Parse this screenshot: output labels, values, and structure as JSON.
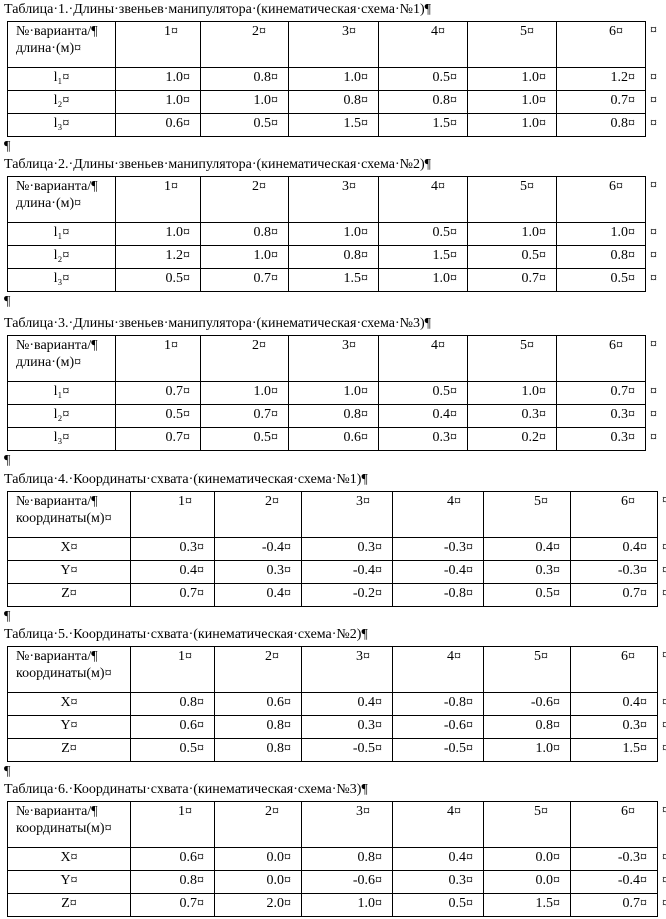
{
  "tables": [
    {
      "title": "Таблица·1.·Длины·звеньев·манипулятора·(кинематическая·схема·№1)¶",
      "header": {
        "label": [
          "№·варианта/¶",
          "длина·(м)¤"
        ],
        "columns": [
          "1¤",
          "2¤",
          "3¤",
          "4¤",
          "5¤",
          "6¤"
        ],
        "end": "¤"
      },
      "rows": [
        {
          "label": "l₁¤",
          "cells": [
            "1.0¤",
            "0.8¤",
            "1.0¤",
            "0.5¤",
            "1.0¤",
            "1.2¤"
          ],
          "end": "¤"
        },
        {
          "label": "l₂¤",
          "cells": [
            "1.0¤",
            "1.0¤",
            "0.8¤",
            "0.8¤",
            "1.0¤",
            "0.7¤"
          ],
          "end": "¤"
        },
        {
          "label": "l₃¤",
          "cells": [
            "0.6¤",
            "0.5¤",
            "1.5¤",
            "1.5¤",
            "1.0¤",
            "0.8¤"
          ],
          "end": "¤"
        }
      ],
      "after": "¶"
    },
    {
      "title": "Таблица·2.·Длины·звеньев·манипулятора·(кинематическая·схема·№2)¶",
      "header": {
        "label": [
          "№·варианта/¶",
          "длина·(м)¤"
        ],
        "columns": [
          "1¤",
          "2¤",
          "3¤",
          "4¤",
          "5¤",
          "6¤"
        ],
        "end": "¤"
      },
      "rows": [
        {
          "label": "l₁¤",
          "cells": [
            "1.0¤",
            "0.8¤",
            "1.0¤",
            "0.5¤",
            "1.0¤",
            "1.0¤"
          ],
          "end": "¤"
        },
        {
          "label": "l₂¤",
          "cells": [
            "1.2¤",
            "1.0¤",
            "0.8¤",
            "1.5¤",
            "0.5¤",
            "0.8¤"
          ],
          "end": "¤"
        },
        {
          "label": "l₃¤",
          "cells": [
            "0.5¤",
            "0.7¤",
            "1.5¤",
            "1.0¤",
            "0.7¤",
            "0.5¤"
          ],
          "end": "¤"
        }
      ],
      "after": "¶"
    },
    {
      "title": "Таблица·3.·Длины·звеньев·манипулятора·(кинематическая·схема·№3)¶",
      "header": {
        "label": [
          "№·варианта/¶",
          "длина·(м)¤"
        ],
        "columns": [
          "1¤",
          "2¤",
          "3¤",
          "4¤",
          "5¤",
          "6¤"
        ],
        "end": "¤"
      },
      "rows": [
        {
          "label": "l₁¤",
          "cells": [
            "0.7¤",
            "1.0¤",
            "1.0¤",
            "0.5¤",
            "1.0¤",
            "0.7¤"
          ],
          "end": "¤"
        },
        {
          "label": "l₂¤",
          "cells": [
            "0.5¤",
            "0.7¤",
            "0.8¤",
            "0.4¤",
            "0.3¤",
            "0.3¤"
          ],
          "end": "¤"
        },
        {
          "label": "l₃¤",
          "cells": [
            "0.7¤",
            "0.5¤",
            "0.6¤",
            "0.3¤",
            "0.2¤",
            "0.3¤"
          ],
          "end": "¤"
        }
      ],
      "after": "¶"
    },
    {
      "title": "Таблица·4.·Координаты·схвата·(кинематическая·схема·№1)¶",
      "header": {
        "label": [
          "№·варианта/¶",
          "координаты(м)¤"
        ],
        "columns": [
          "1¤",
          "2¤",
          "3¤",
          "4¤",
          "5¤",
          "6¤"
        ],
        "end": "¤"
      },
      "rows": [
        {
          "label": "X¤",
          "cells": [
            "0.3¤",
            "-0.4¤",
            "0.3¤",
            "-0.3¤",
            "0.4¤",
            "0.4¤"
          ],
          "end": "¤"
        },
        {
          "label": "Y¤",
          "cells": [
            "0.4¤",
            "0.3¤",
            "-0.4¤",
            "-0.4¤",
            "0.3¤",
            "-0.3¤"
          ],
          "end": "¤"
        },
        {
          "label": "Z¤",
          "cells": [
            "0.7¤",
            "0.4¤",
            "-0.2¤",
            "-0.8¤",
            "0.5¤",
            "0.7¤"
          ],
          "end": "¤"
        }
      ],
      "after": "¶"
    },
    {
      "title": "Таблица·5.·Координаты·схвата·(кинематическая·схема·№2)¶",
      "header": {
        "label": [
          "№·варианта/¶",
          "координаты(м)¤"
        ],
        "columns": [
          "1¤",
          "2¤",
          "3¤",
          "4¤",
          "5¤",
          "6¤"
        ],
        "end": "¤"
      },
      "rows": [
        {
          "label": "X¤",
          "cells": [
            "0.8¤",
            "0.6¤",
            "0.4¤",
            "-0.8¤",
            "-0.6¤",
            "0.4¤"
          ],
          "end": "¤"
        },
        {
          "label": "Y¤",
          "cells": [
            "0.6¤",
            "0.8¤",
            "0.3¤",
            "-0.6¤",
            "0.8¤",
            "0.3¤"
          ],
          "end": "¤"
        },
        {
          "label": "Z¤",
          "cells": [
            "0.5¤",
            "0.8¤",
            "-0.5¤",
            "-0.5¤",
            "1.0¤",
            "1.5¤"
          ],
          "end": "¤"
        }
      ],
      "after": "¶"
    },
    {
      "title": "Таблица·6.·Координаты·схвата·(кинематическая·схема·№3)¶",
      "header": {
        "label": [
          "№·варианта/¶",
          "координаты(м)¤"
        ],
        "columns": [
          "1¤",
          "2¤",
          "3¤",
          "4¤",
          "5¤",
          "6¤"
        ],
        "end": "¤"
      },
      "rows": [
        {
          "label": "X¤",
          "cells": [
            "0.6¤",
            "0.0¤",
            "0.8¤",
            "0.4¤",
            "0.0¤",
            "-0.3¤"
          ],
          "end": "¤"
        },
        {
          "label": "Y¤",
          "cells": [
            "0.8¤",
            "0.0¤",
            "-0.6¤",
            "0.3¤",
            "0.0¤",
            "-0.4¤"
          ],
          "end": "¤"
        },
        {
          "label": "Z¤",
          "cells": [
            "0.7¤",
            "2.0¤",
            "1.0¤",
            "0.5¤",
            "1.5¤",
            "0.7¤"
          ],
          "end": "¤"
        }
      ]
    }
  ]
}
